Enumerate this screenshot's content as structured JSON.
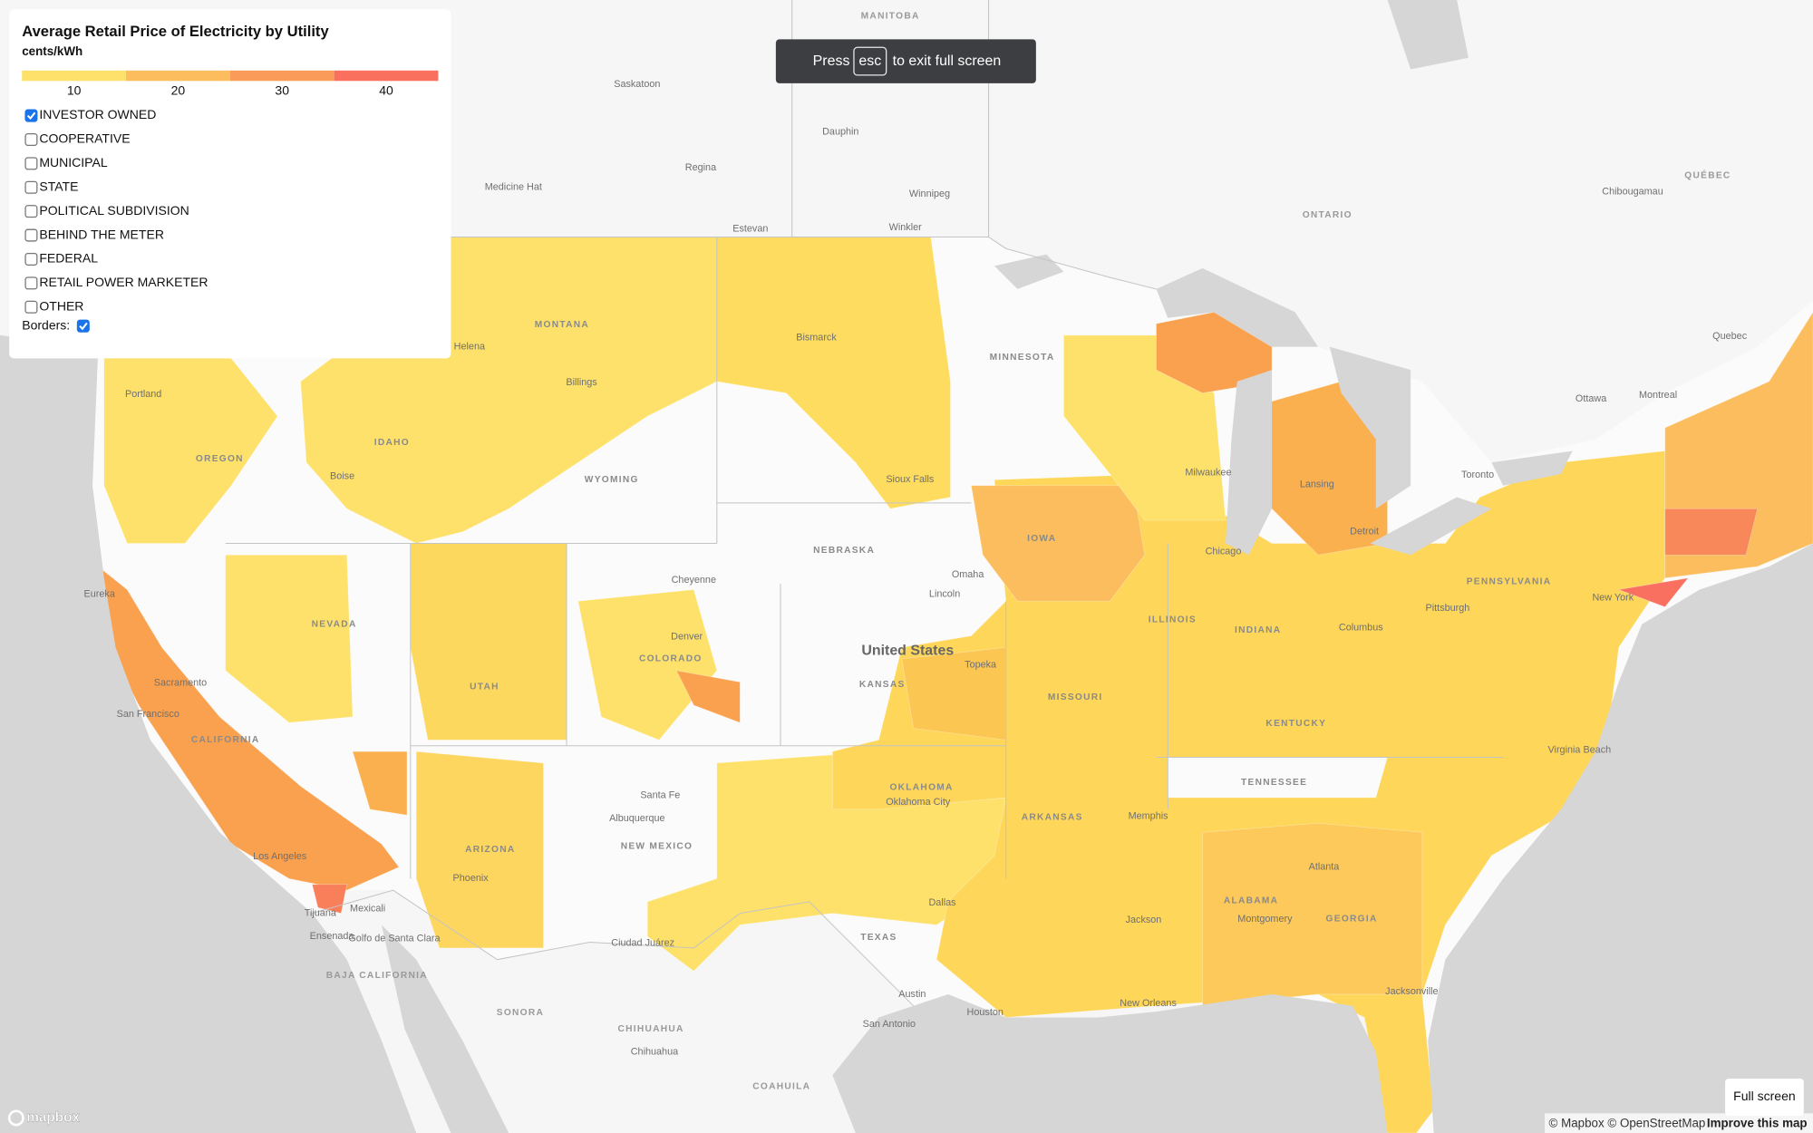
{
  "panel": {
    "title": "Average Retail Price of Electricity by Utility",
    "unit": "cents/kWh",
    "legend": {
      "colors": [
        "#fde16a",
        "#fbbd5e",
        "#fa9b5a",
        "#fa705e"
      ],
      "ticks": [
        10,
        20,
        30,
        40
      ]
    },
    "options": [
      {
        "label": "INVESTOR OWNED",
        "checked": true
      },
      {
        "label": "COOPERATIVE",
        "checked": false
      },
      {
        "label": "MUNICIPAL",
        "checked": false
      },
      {
        "label": "STATE",
        "checked": false
      },
      {
        "label": "POLITICAL SUBDIVISION",
        "checked": false
      },
      {
        "label": "BEHIND THE METER",
        "checked": false
      },
      {
        "label": "FEDERAL",
        "checked": false
      },
      {
        "label": "RETAIL POWER MARKETER",
        "checked": false
      },
      {
        "label": "OTHER",
        "checked": false
      }
    ],
    "borders": {
      "label": "Borders:",
      "checked": true
    }
  },
  "toast": {
    "before": "Press",
    "key": "esc",
    "after": "to exit full screen"
  },
  "map": {
    "labels": [
      "MANITOBA",
      "Saskatoon",
      "Regina",
      "Dauphin",
      "Winnipeg",
      "Medicine Hat",
      "Estevan",
      "Winkler",
      "ONTARIO",
      "QUÉBEC",
      "Chibougamau",
      "Quebec",
      "Ottawa",
      "Montreal",
      "Toronto",
      "MONTANA",
      "IDAHO",
      "OREGON",
      "WYOMING",
      "NEVADA",
      "UTAH",
      "COLORADO",
      "NEBRASKA",
      "KANSAS",
      "United States",
      "MINNESOTA",
      "IOWA",
      "ILLINOIS",
      "INDIANA",
      "KENTUCKY",
      "TENNESSEE",
      "MISSOURI",
      "OKLAHOMA",
      "ARKANSAS",
      "TEXAS",
      "NEW MEXICO",
      "ARIZONA",
      "CALIFORNIA",
      "ALABAMA",
      "GEORGIA",
      "PENNSYLVANIA",
      "Sacramento",
      "San Francisco",
      "Los Angeles",
      "Tijuana",
      "Mexicali",
      "Ensenada",
      "Phoenix",
      "Albuquerque",
      "Santa Fe",
      "Denver",
      "Cheyenne",
      "Omaha",
      "Lincoln",
      "Topeka",
      "Dallas",
      "Austin",
      "San Antonio",
      "Houston",
      "Memphis",
      "Atlanta",
      "Montgomery",
      "Jacksonville",
      "Chicago",
      "Detroit",
      "Milwaukee",
      "Lansing",
      "New York",
      "Columbus",
      "Pittsburgh",
      "Virginia Beach",
      "Billings",
      "Helena",
      "Boise",
      "Sioux Falls",
      "Bismarck",
      "Oklahoma City",
      "Eureka",
      "Portland",
      "SONORA",
      "CHIHUAHUA",
      "Chihuahua",
      "COAHUILA",
      "BAJA CALIFORNIA",
      "Ciudad Juárez",
      "Golfo de Santa Clara",
      "Jackson",
      "New Orleans"
    ]
  },
  "footer": {
    "logo": "mapbox",
    "attribution": "© Mapbox © OpenStreetMap",
    "improve": "Improve this map",
    "fullscreen": "Full screen"
  }
}
